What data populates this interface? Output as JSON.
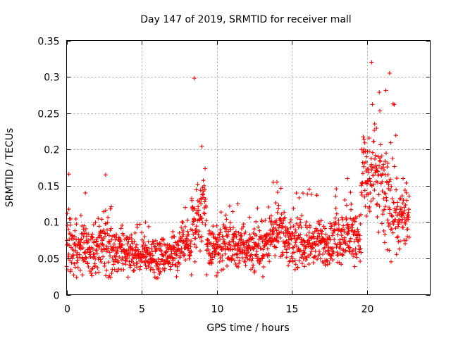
{
  "chart_data": {
    "type": "scatter",
    "title": "Day 147 of 2019, SRMTID for receiver mall",
    "xlabel": "GPS time / hours",
    "ylabel": "SRMTID / TECUs",
    "xlim": [
      0,
      24.2
    ],
    "ylim": [
      0,
      0.35
    ],
    "xticks": [
      0,
      5,
      10,
      15,
      20
    ],
    "xtick_labels": [
      "0",
      "5",
      "10",
      "15",
      "20"
    ],
    "yticks": [
      0,
      0.05,
      0.1,
      0.15,
      0.2,
      0.25,
      0.3,
      0.35
    ],
    "ytick_labels": [
      "0",
      "0.05",
      "0.1",
      "0.15",
      "0.2",
      "0.25",
      "0.3",
      "0.35"
    ],
    "grid": true,
    "marker": "+",
    "series": [
      {
        "name": "SRMTID",
        "color": "#ff0000",
        "x_range": [
          0,
          22.8
        ],
        "point_count": 1650,
        "profile": [
          {
            "start": 0.0,
            "end": 0.3,
            "median": 0.07,
            "spread": 0.04,
            "peak": 0.166
          },
          {
            "start": 0.3,
            "end": 2.2,
            "median": 0.062,
            "spread": 0.028,
            "peak": 0.14
          },
          {
            "start": 2.2,
            "end": 3.0,
            "median": 0.07,
            "spread": 0.035,
            "peak": 0.165
          },
          {
            "start": 3.0,
            "end": 7.5,
            "median": 0.055,
            "spread": 0.022,
            "peak": 0.1
          },
          {
            "start": 7.5,
            "end": 8.3,
            "median": 0.072,
            "spread": 0.025,
            "peak": 0.12
          },
          {
            "start": 8.3,
            "end": 8.7,
            "median": 0.09,
            "spread": 0.05,
            "peak": 0.298
          },
          {
            "start": 8.7,
            "end": 9.3,
            "median": 0.11,
            "spread": 0.045,
            "peak": 0.204
          },
          {
            "start": 9.3,
            "end": 13.5,
            "median": 0.065,
            "spread": 0.025,
            "peak": 0.125
          },
          {
            "start": 13.5,
            "end": 14.5,
            "median": 0.09,
            "spread": 0.03,
            "peak": 0.155
          },
          {
            "start": 14.5,
            "end": 17.8,
            "median": 0.07,
            "spread": 0.025,
            "peak": 0.145
          },
          {
            "start": 17.8,
            "end": 19.6,
            "median": 0.08,
            "spread": 0.03,
            "peak": 0.16
          },
          {
            "start": 19.6,
            "end": 21.0,
            "median": 0.16,
            "spread": 0.06,
            "peak": 0.32
          },
          {
            "start": 21.0,
            "end": 22.0,
            "median": 0.13,
            "spread": 0.06,
            "peak": 0.305
          },
          {
            "start": 22.0,
            "end": 22.8,
            "median": 0.1,
            "spread": 0.035,
            "peak": 0.16
          }
        ]
      }
    ]
  }
}
